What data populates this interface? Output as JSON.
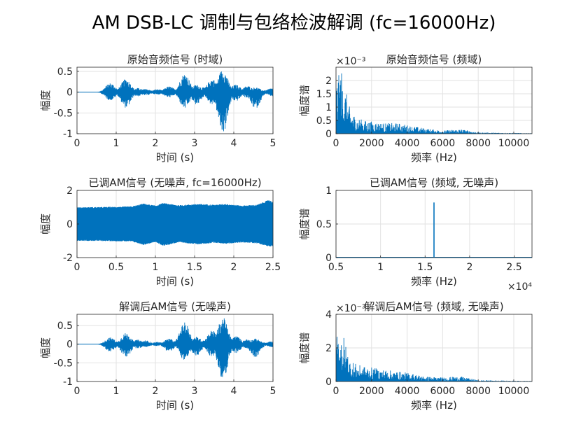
{
  "figure": {
    "title": "AM DSB-LC 调制与包络检波解调 (fc=16000Hz)"
  },
  "colors": {
    "line": "#0072BD",
    "grid": "#e2e2e2",
    "axis": "#262626"
  },
  "chart_data": [
    {
      "type": "line",
      "title": "原始音频信号 (时域)",
      "xlabel": "时间 (s)",
      "ylabel": "幅度",
      "xlim": [
        0,
        5
      ],
      "ylim": [
        -1,
        0.6
      ],
      "xticks": [
        0,
        1,
        2,
        3,
        4,
        5
      ],
      "yticks": [
        -1,
        -0.5,
        0,
        0.5
      ],
      "ytick_labels": [
        "-1",
        "-0.5",
        "0",
        "0.5"
      ],
      "kind": "waveform",
      "baseline": 0,
      "envelope": [
        {
          "x": 0.85,
          "up": 0.22,
          "down": -0.2
        },
        {
          "x": 1.25,
          "up": 0.32,
          "down": -0.38
        },
        {
          "x": 1.55,
          "up": 0.1,
          "down": -0.1
        },
        {
          "x": 1.75,
          "up": 0.08,
          "down": -0.08
        },
        {
          "x": 2.05,
          "up": 0.07,
          "down": -0.06
        },
        {
          "x": 2.35,
          "up": 0.14,
          "down": -0.13
        },
        {
          "x": 2.75,
          "up": 0.45,
          "down": -0.4
        },
        {
          "x": 3.05,
          "up": 0.18,
          "down": -0.3
        },
        {
          "x": 3.25,
          "up": 0.12,
          "down": -0.12
        },
        {
          "x": 3.45,
          "up": 0.32,
          "down": -0.3
        },
        {
          "x": 3.72,
          "up": 0.55,
          "down": -1.0
        },
        {
          "x": 4.05,
          "up": 0.18,
          "down": -0.22
        },
        {
          "x": 4.35,
          "up": 0.15,
          "down": -0.14
        },
        {
          "x": 4.55,
          "up": 0.12,
          "down": -0.4
        },
        {
          "x": 4.75,
          "up": 0.05,
          "down": -0.05
        },
        {
          "x": 4.98,
          "up": 0.1,
          "down": -0.1
        }
      ]
    },
    {
      "type": "line",
      "title": "原始音频信号 (频域)",
      "xlabel": "频率 (Hz)",
      "ylabel": "幅度谱",
      "xlim": [
        0,
        11025
      ],
      "ylim": [
        0,
        0.0025
      ],
      "xticks": [
        0,
        2000,
        4000,
        6000,
        8000,
        10000
      ],
      "yticks": [
        0,
        0.0005,
        0.001,
        0.0015,
        0.002
      ],
      "ytick_labels": [
        "0",
        "0.5",
        "1",
        "1.5",
        "2"
      ],
      "exponent_label": "×10⁻³",
      "kind": "spectrum",
      "envelope": [
        {
          "x": 150,
          "up": 0.0022,
          "down": 0
        },
        {
          "x": 300,
          "up": 0.0025,
          "down": 0
        },
        {
          "x": 500,
          "up": 0.0018,
          "down": 0
        },
        {
          "x": 800,
          "up": 0.0009,
          "down": 0
        },
        {
          "x": 1200,
          "up": 0.0006,
          "down": 0
        },
        {
          "x": 1600,
          "up": 0.0005,
          "down": 0
        },
        {
          "x": 2200,
          "up": 0.00045,
          "down": 0
        },
        {
          "x": 2800,
          "up": 0.0004,
          "down": 0
        },
        {
          "x": 3500,
          "up": 0.0004,
          "down": 0
        },
        {
          "x": 4200,
          "up": 0.0003,
          "down": 0
        },
        {
          "x": 5000,
          "up": 0.0002,
          "down": 0
        },
        {
          "x": 6000,
          "up": 0.00012,
          "down": 0
        },
        {
          "x": 7000,
          "up": 0.00018,
          "down": 0
        },
        {
          "x": 8000,
          "up": 5e-05,
          "down": 0
        },
        {
          "x": 11000,
          "up": 2e-05,
          "down": 0
        }
      ]
    },
    {
      "type": "line",
      "title": "已调AM信号 (无噪声, fc=16000Hz)",
      "xlabel": "时间 (s)",
      "ylabel": "幅度",
      "xlim": [
        0,
        2.5
      ],
      "ylim": [
        -2,
        2
      ],
      "xticks": [
        0,
        0.5,
        1,
        1.5,
        2,
        2.5
      ],
      "yticks": [
        -2,
        0,
        2
      ],
      "ytick_labels": [
        "-2",
        "0",
        "2"
      ],
      "kind": "waveform",
      "baseline": 0,
      "envelope": [
        {
          "x": 0.0,
          "up": 1.0,
          "down": -1.0
        },
        {
          "x": 0.4,
          "up": 1.02,
          "down": -1.02
        },
        {
          "x": 0.7,
          "up": 1.05,
          "down": -1.05
        },
        {
          "x": 0.85,
          "up": 1.22,
          "down": -1.25
        },
        {
          "x": 1.0,
          "up": 1.1,
          "down": -1.08
        },
        {
          "x": 1.1,
          "up": 1.25,
          "down": -1.3
        },
        {
          "x": 1.3,
          "up": 1.12,
          "down": -1.1
        },
        {
          "x": 1.55,
          "up": 1.2,
          "down": -1.22
        },
        {
          "x": 1.75,
          "up": 1.15,
          "down": -1.12
        },
        {
          "x": 1.9,
          "up": 1.2,
          "down": -1.18
        },
        {
          "x": 2.1,
          "up": 1.1,
          "down": -1.1
        },
        {
          "x": 2.3,
          "up": 1.15,
          "down": -1.15
        },
        {
          "x": 2.45,
          "up": 1.45,
          "down": -1.35
        },
        {
          "x": 2.5,
          "up": 1.3,
          "down": -1.3
        }
      ]
    },
    {
      "type": "line",
      "title": "已调AM信号 (频域, 无噪声)",
      "xlabel": "频率 (Hz)",
      "ylabel": "幅度谱",
      "xlim": [
        5000,
        27000
      ],
      "ylim": [
        0,
        1
      ],
      "xticks": [
        5000,
        10000,
        15000,
        20000,
        25000
      ],
      "xtick_labels": [
        "0.5",
        "1",
        "1.5",
        "2",
        "2.5"
      ],
      "xexponent_label": "×10⁴",
      "yticks": [
        0,
        0.5,
        1
      ],
      "ytick_labels": [
        "0",
        "0.5",
        "1"
      ],
      "kind": "spike",
      "spikes": [
        {
          "x": 16000,
          "y": 0.82
        }
      ],
      "floor": 0.004
    },
    {
      "type": "line",
      "title": "解调后AM信号 (无噪声)",
      "xlabel": "时间 (s)",
      "ylabel": "幅度",
      "xlim": [
        0,
        5
      ],
      "ylim": [
        -1,
        0.8
      ],
      "xticks": [
        0,
        1,
        2,
        3,
        4,
        5
      ],
      "yticks": [
        -1,
        -0.5,
        0,
        0.5
      ],
      "ytick_labels": [
        "-1",
        "-0.5",
        "0",
        "0.5"
      ],
      "kind": "waveform",
      "baseline": 0,
      "envelope": [
        {
          "x": 0.85,
          "up": 0.18,
          "down": -0.2
        },
        {
          "x": 1.25,
          "up": 0.3,
          "down": -0.35
        },
        {
          "x": 1.55,
          "up": 0.12,
          "down": -0.12
        },
        {
          "x": 1.75,
          "up": 0.1,
          "down": -0.08
        },
        {
          "x": 2.05,
          "up": 0.06,
          "down": -0.05
        },
        {
          "x": 2.35,
          "up": 0.15,
          "down": -0.2
        },
        {
          "x": 2.75,
          "up": 0.58,
          "down": -0.45
        },
        {
          "x": 3.05,
          "up": 0.2,
          "down": -0.32
        },
        {
          "x": 3.25,
          "up": 0.12,
          "down": -0.1
        },
        {
          "x": 3.45,
          "up": 0.38,
          "down": -0.35
        },
        {
          "x": 3.72,
          "up": 0.72,
          "down": -0.98
        },
        {
          "x": 4.05,
          "up": 0.22,
          "down": -0.25
        },
        {
          "x": 4.35,
          "up": 0.14,
          "down": -0.12
        },
        {
          "x": 4.55,
          "up": 0.15,
          "down": -0.35
        },
        {
          "x": 4.75,
          "up": 0.05,
          "down": -0.05
        },
        {
          "x": 4.98,
          "up": 0.08,
          "down": -0.08
        }
      ]
    },
    {
      "type": "line",
      "title": "解调后AM信号 (频域, 无噪声)",
      "xlabel": "频率 (Hz)",
      "ylabel": "幅度谱",
      "xlim": [
        0,
        11025
      ],
      "ylim": [
        0,
        0.004
      ],
      "xticks": [
        0,
        2000,
        4000,
        6000,
        8000,
        10000
      ],
      "yticks": [
        0,
        0.002,
        0.004
      ],
      "ytick_labels": [
        "0",
        "2",
        "4"
      ],
      "exponent_label": "×10⁻³",
      "kind": "spectrum",
      "envelope": [
        {
          "x": 150,
          "up": 0.0028,
          "down": 0
        },
        {
          "x": 350,
          "up": 0.0032,
          "down": 0
        },
        {
          "x": 550,
          "up": 0.0022,
          "down": 0
        },
        {
          "x": 800,
          "up": 0.0013,
          "down": 0
        },
        {
          "x": 1200,
          "up": 0.001,
          "down": 0
        },
        {
          "x": 1600,
          "up": 0.0009,
          "down": 0
        },
        {
          "x": 2200,
          "up": 0.0008,
          "down": 0
        },
        {
          "x": 2800,
          "up": 0.0007,
          "down": 0
        },
        {
          "x": 3500,
          "up": 0.0006,
          "down": 0
        },
        {
          "x": 4200,
          "up": 0.0005,
          "down": 0
        },
        {
          "x": 5000,
          "up": 0.0003,
          "down": 0
        },
        {
          "x": 6000,
          "up": 0.00025,
          "down": 0
        },
        {
          "x": 7000,
          "up": 0.0003,
          "down": 0
        },
        {
          "x": 8000,
          "up": 8e-05,
          "down": 0
        },
        {
          "x": 11000,
          "up": 3e-05,
          "down": 0
        }
      ]
    }
  ]
}
